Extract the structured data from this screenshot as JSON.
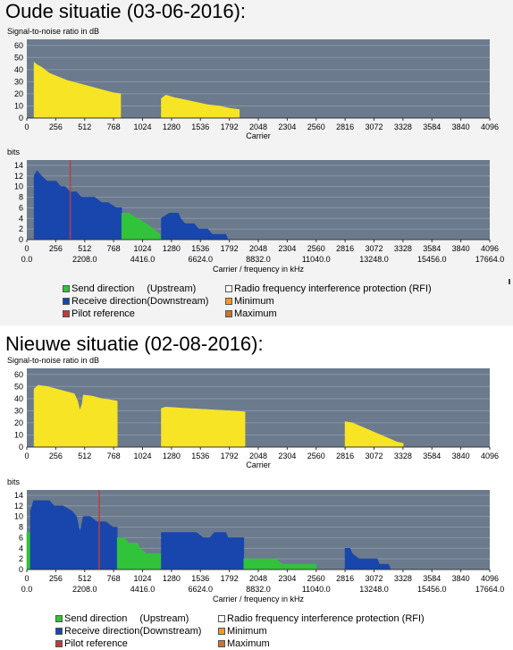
{
  "headings": {
    "old": "Oude situatie (03-06-2016):",
    "new": "Nieuwe situatie (02-08-2016):"
  },
  "colors": {
    "plot_bg": "#6b7b8d",
    "grid": "#8796a5",
    "snr_fill": "#f7e425",
    "receive": "#1846ad",
    "send": "#31c339",
    "pilot": "#c23a3a",
    "rfi": "#ffffff",
    "minimum": "#f49b1b",
    "maximum": "#c8772a"
  },
  "legend": {
    "send_direction": "Send direction",
    "upstream": "(Upstream)",
    "rfi": "Radio frequency interference protection (RFI)",
    "receive_direction": "Receive direction(Downstream)",
    "minimum": "Minimum",
    "pilot_reference": "Pilot reference",
    "maximum": "Maximum"
  },
  "chart_data": [
    {
      "id": "old-snr",
      "type": "area",
      "ylabel": "Signal-to-noise ratio in dB",
      "xlabel": "Carrier",
      "xlim": [
        0,
        4096
      ],
      "ylim": [
        0,
        65
      ],
      "x_ticks": [
        "0",
        "256",
        "512",
        "768",
        "1024",
        "1280",
        "1536",
        "1792",
        "2048",
        "2304",
        "2560",
        "2816",
        "3072",
        "3328",
        "3584",
        "3840",
        "4096"
      ],
      "y_ticks": [
        "0",
        "10",
        "20",
        "30",
        "40",
        "50",
        "60"
      ],
      "series": [
        {
          "fill": "snr_fill",
          "points": [
            [
              64,
              0
            ],
            [
              64,
              46
            ],
            [
              90,
              44
            ],
            [
              130,
              42
            ],
            [
              200,
              37
            ],
            [
              280,
              34
            ],
            [
              360,
              31
            ],
            [
              440,
              29
            ],
            [
              520,
              27
            ],
            [
              600,
              25
            ],
            [
              680,
              23
            ],
            [
              760,
              21
            ],
            [
              830,
              20
            ],
            [
              830,
              0
            ]
          ]
        },
        {
          "fill": "snr_fill",
          "points": [
            [
              1190,
              0
            ],
            [
              1190,
              16
            ],
            [
              1230,
              19
            ],
            [
              1300,
              17
            ],
            [
              1400,
              15
            ],
            [
              1500,
              13
            ],
            [
              1600,
              11
            ],
            [
              1700,
              10
            ],
            [
              1800,
              8
            ],
            [
              1880,
              7
            ],
            [
              1880,
              0
            ]
          ]
        }
      ]
    },
    {
      "id": "old-bits",
      "type": "area",
      "ylabel": "bits",
      "xlabel": "Carrier / frequency in kHz",
      "xlim": [
        0,
        4096
      ],
      "ylim": [
        0,
        15
      ],
      "x_ticks": [
        "0",
        "256",
        "512",
        "768",
        "1024",
        "1280",
        "1536",
        "1792",
        "2048",
        "2304",
        "2560",
        "2816",
        "3072",
        "3328",
        "3584",
        "3840",
        "4096"
      ],
      "freq_ticks": [
        "0.0",
        "2208.0",
        "4416.0",
        "6624.0",
        "8832.0",
        "11040.0",
        "13248.0",
        "15456.0",
        "17664.0"
      ],
      "y_ticks": [
        "0",
        "2",
        "4",
        "6",
        "8",
        "10",
        "12",
        "14"
      ],
      "pilot_x": 384,
      "series": [
        {
          "fill": "receive",
          "points": [
            [
              64,
              0
            ],
            [
              64,
              12
            ],
            [
              90,
              13
            ],
            [
              130,
              12
            ],
            [
              180,
              11
            ],
            [
              260,
              11
            ],
            [
              300,
              10
            ],
            [
              340,
              10
            ],
            [
              380,
              9
            ],
            [
              440,
              9
            ],
            [
              480,
              8
            ],
            [
              600,
              8
            ],
            [
              660,
              7
            ],
            [
              720,
              7
            ],
            [
              790,
              6
            ],
            [
              840,
              6
            ],
            [
              840,
              0
            ]
          ]
        },
        {
          "fill": "send",
          "points": [
            [
              840,
              0
            ],
            [
              840,
              5
            ],
            [
              900,
              5
            ],
            [
              980,
              4
            ],
            [
              1060,
              3
            ],
            [
              1120,
              2
            ],
            [
              1180,
              1
            ],
            [
              1190,
              0
            ]
          ]
        },
        {
          "fill": "receive",
          "points": [
            [
              1190,
              0
            ],
            [
              1190,
              4
            ],
            [
              1260,
              5
            ],
            [
              1340,
              5
            ],
            [
              1360,
              4
            ],
            [
              1400,
              3
            ],
            [
              1480,
              3
            ],
            [
              1520,
              2
            ],
            [
              1600,
              2
            ],
            [
              1640,
              1
            ],
            [
              1760,
              1
            ],
            [
              1780,
              0
            ]
          ]
        }
      ]
    },
    {
      "id": "new-snr",
      "type": "area",
      "ylabel": "Signal-to-noise ratio in dB",
      "xlabel": "Carrier",
      "xlim": [
        0,
        4096
      ],
      "ylim": [
        0,
        65
      ],
      "x_ticks": [
        "0",
        "256",
        "512",
        "768",
        "1024",
        "1280",
        "1536",
        "1792",
        "2048",
        "2304",
        "2560",
        "2816",
        "3072",
        "3328",
        "3584",
        "3840",
        "4096"
      ],
      "y_ticks": [
        "0",
        "10",
        "20",
        "30",
        "40",
        "50",
        "60"
      ],
      "series": [
        {
          "fill": "snr_fill",
          "points": [
            [
              64,
              0
            ],
            [
              64,
              48
            ],
            [
              100,
              51
            ],
            [
              180,
              50
            ],
            [
              260,
              48
            ],
            [
              340,
              46
            ],
            [
              420,
              44
            ],
            [
              450,
              38
            ],
            [
              470,
              30
            ],
            [
              490,
              36
            ],
            [
              500,
              43
            ],
            [
              580,
              42
            ],
            [
              660,
              40
            ],
            [
              740,
              39
            ],
            [
              800,
              38
            ],
            [
              800,
              0
            ]
          ]
        },
        {
          "fill": "snr_fill",
          "points": [
            [
              1190,
              0
            ],
            [
              1190,
              32
            ],
            [
              1230,
              33
            ],
            [
              1400,
              32
            ],
            [
              1600,
              31
            ],
            [
              1800,
              30
            ],
            [
              1930,
              29
            ],
            [
              1930,
              0
            ]
          ]
        },
        {
          "fill": "snr_fill",
          "points": [
            [
              2816,
              0
            ],
            [
              2816,
              21
            ],
            [
              2880,
              20
            ],
            [
              2980,
              16
            ],
            [
              3080,
              12
            ],
            [
              3180,
              8
            ],
            [
              3280,
              4
            ],
            [
              3330,
              3
            ],
            [
              3330,
              0
            ]
          ]
        }
      ]
    },
    {
      "id": "new-bits",
      "type": "area",
      "ylabel": "bits",
      "xlabel": "Carrier / frequency in kHz",
      "xlim": [
        0,
        4096
      ],
      "ylim": [
        0,
        15
      ],
      "x_ticks": [
        "0",
        "256",
        "512",
        "768",
        "1024",
        "1280",
        "1536",
        "1792",
        "2048",
        "2304",
        "2560",
        "2816",
        "3072",
        "3328",
        "3584",
        "3840",
        "4096"
      ],
      "freq_ticks": [
        "0.0",
        "2208.0",
        "4416.0",
        "6624.0",
        "8832.0",
        "11040.0",
        "13248.0",
        "15456.0",
        "17664.0"
      ],
      "y_ticks": [
        "0",
        "2",
        "4",
        "6",
        "8",
        "10",
        "12",
        "14"
      ],
      "pilot_x": 640,
      "series": [
        {
          "fill": "send",
          "points": [
            [
              0,
              0
            ],
            [
              0,
              7
            ],
            [
              32,
              7
            ],
            [
              32,
              0
            ]
          ]
        },
        {
          "fill": "receive",
          "points": [
            [
              32,
              0
            ],
            [
              32,
              11
            ],
            [
              60,
              13
            ],
            [
              200,
              13
            ],
            [
              240,
              12
            ],
            [
              320,
              12
            ],
            [
              400,
              11
            ],
            [
              440,
              10
            ],
            [
              470,
              7
            ],
            [
              490,
              9
            ],
            [
              500,
              10
            ],
            [
              560,
              10
            ],
            [
              620,
              9
            ],
            [
              700,
              9
            ],
            [
              760,
              8
            ],
            [
              800,
              8
            ],
            [
              800,
              0
            ]
          ]
        },
        {
          "fill": "send",
          "points": [
            [
              800,
              0
            ],
            [
              800,
              6
            ],
            [
              860,
              6
            ],
            [
              900,
              5
            ],
            [
              980,
              5
            ],
            [
              1000,
              4
            ],
            [
              1060,
              3
            ],
            [
              1120,
              3
            ],
            [
              1190,
              3
            ],
            [
              1190,
              0
            ]
          ]
        },
        {
          "fill": "receive",
          "points": [
            [
              1190,
              0
            ],
            [
              1190,
              7
            ],
            [
              1300,
              7
            ],
            [
              1500,
              7
            ],
            [
              1560,
              6
            ],
            [
              1620,
              6
            ],
            [
              1660,
              7
            ],
            [
              1760,
              7
            ],
            [
              1780,
              6
            ],
            [
              1920,
              6
            ],
            [
              1920,
              0
            ]
          ]
        },
        {
          "fill": "send",
          "points": [
            [
              1920,
              0
            ],
            [
              1920,
              2
            ],
            [
              2200,
              2
            ],
            [
              2260,
              1
            ],
            [
              2560,
              1
            ],
            [
              2560,
              0
            ]
          ]
        },
        {
          "fill": "receive",
          "points": [
            [
              2816,
              0
            ],
            [
              2816,
              4
            ],
            [
              2860,
              4
            ],
            [
              2880,
              3
            ],
            [
              2940,
              2
            ],
            [
              3100,
              2
            ],
            [
              3120,
              1
            ],
            [
              3200,
              1
            ],
            [
              3220,
              0
            ]
          ]
        }
      ]
    }
  ]
}
